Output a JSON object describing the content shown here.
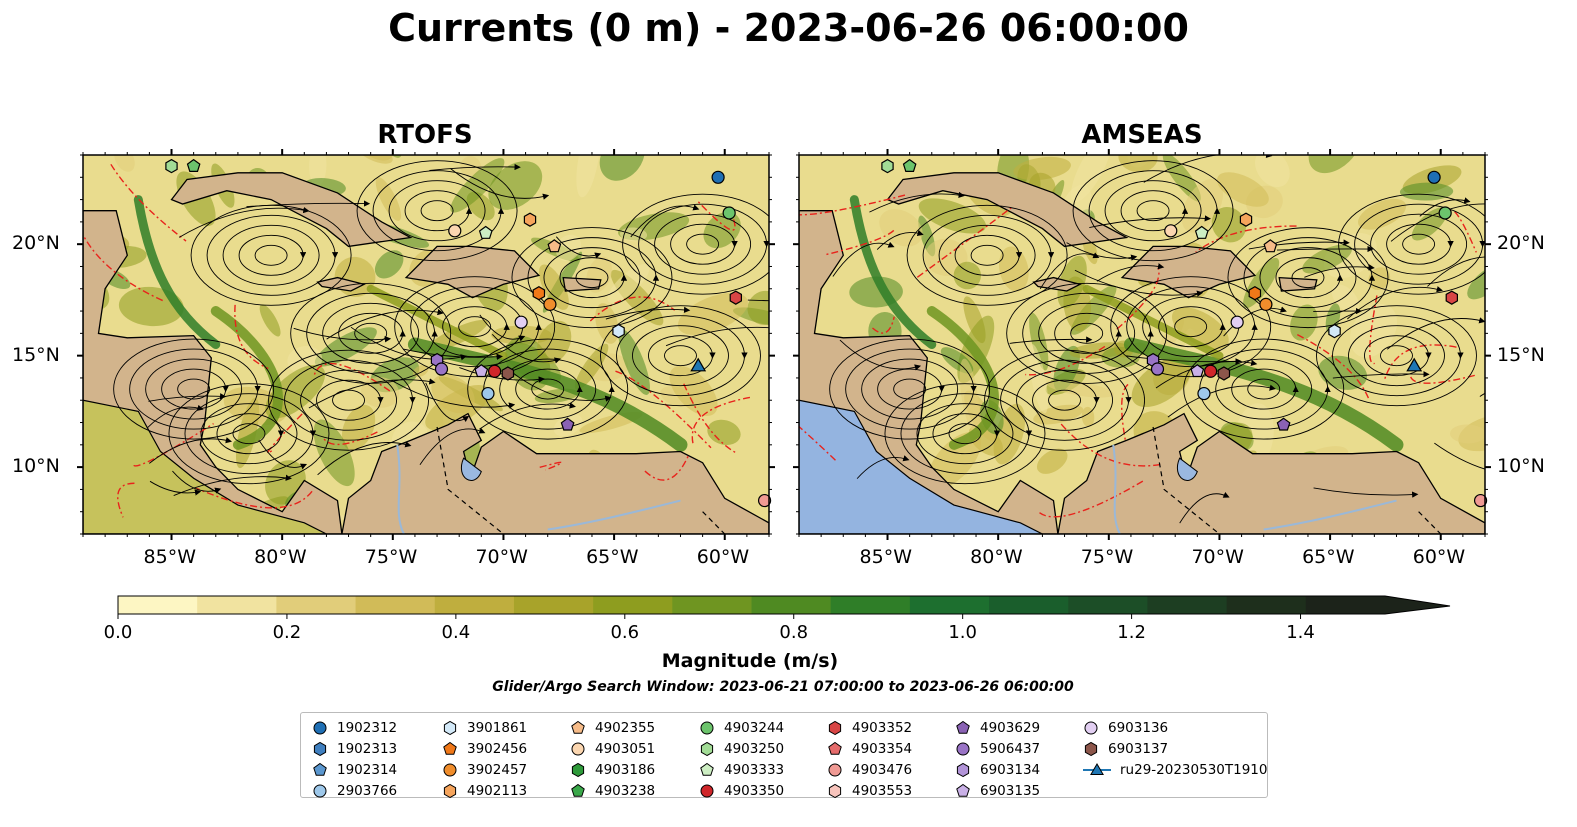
{
  "title": "Currents (0 m) - 2023-06-26 06:00:00",
  "panels": [
    {
      "title": "RTOFS"
    },
    {
      "title": "AMSEAS"
    }
  ],
  "lon_ticks": [
    "85°W",
    "80°W",
    "75°W",
    "70°W",
    "65°W",
    "60°W"
  ],
  "lat_ticks": [
    "20°N",
    "15°N",
    "10°N"
  ],
  "colorbar": {
    "label": "Magnitude (m/s)",
    "ticks": [
      "0.0",
      "0.2",
      "0.4",
      "0.6",
      "0.8",
      "1.0",
      "1.2",
      "1.4"
    ],
    "colors": [
      "#fdf6c3",
      "#f1e3a0",
      "#e1cd7a",
      "#d1bb58",
      "#bfae3e",
      "#a8a32a",
      "#8e9d1f",
      "#6f9521",
      "#4f8a22",
      "#2f7e28",
      "#1d6f2f",
      "#1a5e2c",
      "#1c4e27",
      "#1d3e22",
      "#1e2f1c",
      "#1c231a"
    ]
  },
  "search_window": "Glider/Argo Search Window: 2023-06-21 07:00:00 to 2023-06-26 06:00:00",
  "legend": [
    {
      "id": "1902312",
      "color": "#1f6fb4",
      "shape": "circle"
    },
    {
      "id": "1902313",
      "color": "#3f7fbf",
      "shape": "hexagon"
    },
    {
      "id": "1902314",
      "color": "#5b97cf",
      "shape": "pentagon"
    },
    {
      "id": "2903766",
      "color": "#9ec8ea",
      "shape": "circle"
    },
    {
      "id": "3901861",
      "color": "#d3e9f8",
      "shape": "hexagon"
    },
    {
      "id": "3902456",
      "color": "#f07818",
      "shape": "pentagon"
    },
    {
      "id": "3902457",
      "color": "#f08d2c",
      "shape": "circle"
    },
    {
      "id": "4902113",
      "color": "#f5a45c",
      "shape": "hexagon"
    },
    {
      "id": "4902355",
      "color": "#f6bb88",
      "shape": "pentagon"
    },
    {
      "id": "4903051",
      "color": "#fbd6b0",
      "shape": "circle"
    },
    {
      "id": "4903186",
      "color": "#2e9a3a",
      "shape": "hexagon"
    },
    {
      "id": "4903238",
      "color": "#3aa84a",
      "shape": "pentagon"
    },
    {
      "id": "4903244",
      "color": "#6cc46c",
      "shape": "circle"
    },
    {
      "id": "4903250",
      "color": "#a2dc96",
      "shape": "hexagon"
    },
    {
      "id": "4903333",
      "color": "#cdeec3",
      "shape": "pentagon"
    },
    {
      "id": "4903350",
      "color": "#d0262a",
      "shape": "circle"
    },
    {
      "id": "4903352",
      "color": "#d84545",
      "shape": "hexagon"
    },
    {
      "id": "4903354",
      "color": "#e56b6b",
      "shape": "pentagon"
    },
    {
      "id": "4903476",
      "color": "#f09a94",
      "shape": "circle"
    },
    {
      "id": "4903553",
      "color": "#f8c4bc",
      "shape": "hexagon"
    },
    {
      "id": "4903629",
      "color": "#8a62b4",
      "shape": "pentagon"
    },
    {
      "id": "5906437",
      "color": "#9a74c6",
      "shape": "circle"
    },
    {
      "id": "6903134",
      "color": "#b294d8",
      "shape": "hexagon"
    },
    {
      "id": "6903135",
      "color": "#c9b0e6",
      "shape": "pentagon"
    },
    {
      "id": "6903136",
      "color": "#e2cff2",
      "shape": "circle"
    },
    {
      "id": "6903137",
      "color": "#8c564b",
      "shape": "hexagon"
    },
    {
      "id": "ru29-20230530T1910",
      "color": "#1f77b4",
      "shape": "triangle"
    }
  ],
  "colors": {
    "land": "#d2b48c",
    "water_fill": "#e9dc8e",
    "red_lines": "#e8231c",
    "lake": "#9ab8e0"
  },
  "markers": [
    {
      "lon": -85,
      "lat": 23.5,
      "color": "#a2dc96",
      "shape": "hexagon"
    },
    {
      "lon": -84,
      "lat": 23.5,
      "color": "#6cc46c",
      "shape": "pentagon"
    },
    {
      "lon": -60.3,
      "lat": 23.0,
      "color": "#1f6fb4",
      "shape": "circle"
    },
    {
      "lon": -59.8,
      "lat": 21.4,
      "color": "#6cc46c",
      "shape": "circle"
    },
    {
      "lon": -68.8,
      "lat": 21.1,
      "color": "#f5a45c",
      "shape": "hexagon"
    },
    {
      "lon": -72.2,
      "lat": 20.6,
      "color": "#fbd6b0",
      "shape": "circle"
    },
    {
      "lon": -70.8,
      "lat": 20.5,
      "color": "#cdeec3",
      "shape": "pentagon"
    },
    {
      "lon": -67.7,
      "lat": 19.9,
      "color": "#f6bb88",
      "shape": "pentagon"
    },
    {
      "lon": -68.4,
      "lat": 17.8,
      "color": "#f07818",
      "shape": "hexagon"
    },
    {
      "lon": -67.9,
      "lat": 17.3,
      "color": "#f08d2c",
      "shape": "circle"
    },
    {
      "lon": -59.5,
      "lat": 17.6,
      "color": "#d84545",
      "shape": "hexagon"
    },
    {
      "lon": -69.2,
      "lat": 16.5,
      "color": "#e2cff2",
      "shape": "circle"
    },
    {
      "lon": -64.8,
      "lat": 16.1,
      "color": "#d3e9f8",
      "shape": "hexagon"
    },
    {
      "lon": -73.0,
      "lat": 14.8,
      "color": "#9a74c6",
      "shape": "hexagon"
    },
    {
      "lon": -72.8,
      "lat": 14.4,
      "color": "#9a74c6",
      "shape": "circle"
    },
    {
      "lon": -71.0,
      "lat": 14.3,
      "color": "#c9b0e6",
      "shape": "pentagon"
    },
    {
      "lon": -70.4,
      "lat": 14.3,
      "color": "#d0262a",
      "shape": "circle"
    },
    {
      "lon": -69.8,
      "lat": 14.2,
      "color": "#8c564b",
      "shape": "hexagon"
    },
    {
      "lon": -70.7,
      "lat": 13.3,
      "color": "#9ec8ea",
      "shape": "circle"
    },
    {
      "lon": -61.2,
      "lat": 14.5,
      "color": "#1f77b4",
      "shape": "triangle"
    },
    {
      "lon": -67.1,
      "lat": 11.9,
      "color": "#8a62b4",
      "shape": "pentagon"
    },
    {
      "lon": -58.2,
      "lat": 8.5,
      "color": "#f09a94",
      "shape": "circle"
    }
  ]
}
